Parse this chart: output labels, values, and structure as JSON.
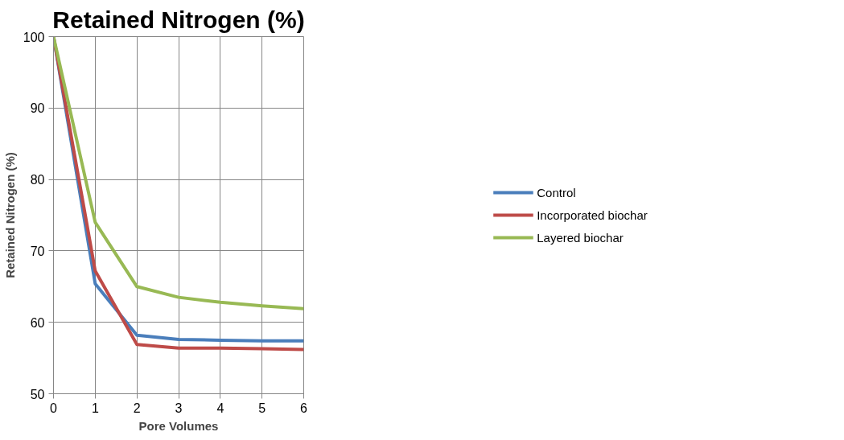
{
  "chart_data": {
    "type": "line",
    "title": "Retained Nitrogen (%)",
    "xlabel": "Pore Volumes",
    "ylabel": "Retained Nitrogen (%)",
    "x": [
      0,
      1,
      2,
      3,
      4,
      5,
      6
    ],
    "series": [
      {
        "name": "Control",
        "color": "#4a7ebb",
        "values": [
          100,
          65.4,
          58.2,
          57.6,
          57.5,
          57.4,
          57.4
        ]
      },
      {
        "name": "Incorporated biochar",
        "color": "#be4b48",
        "values": [
          100,
          67.2,
          56.9,
          56.4,
          56.4,
          56.3,
          56.2
        ]
      },
      {
        "name": "Layered biochar",
        "color": "#98b954",
        "values": [
          100,
          74,
          65,
          63.5,
          62.8,
          62.3,
          61.9
        ]
      }
    ],
    "xlim": [
      0,
      6
    ],
    "xticks": [
      0,
      1,
      2,
      3,
      4,
      5,
      6
    ],
    "ylim": [
      50,
      100
    ],
    "yticks": [
      50,
      60,
      70,
      80,
      90,
      100
    ],
    "grid": true,
    "legend": "right",
    "marker": "none",
    "line_style": "solid"
  }
}
